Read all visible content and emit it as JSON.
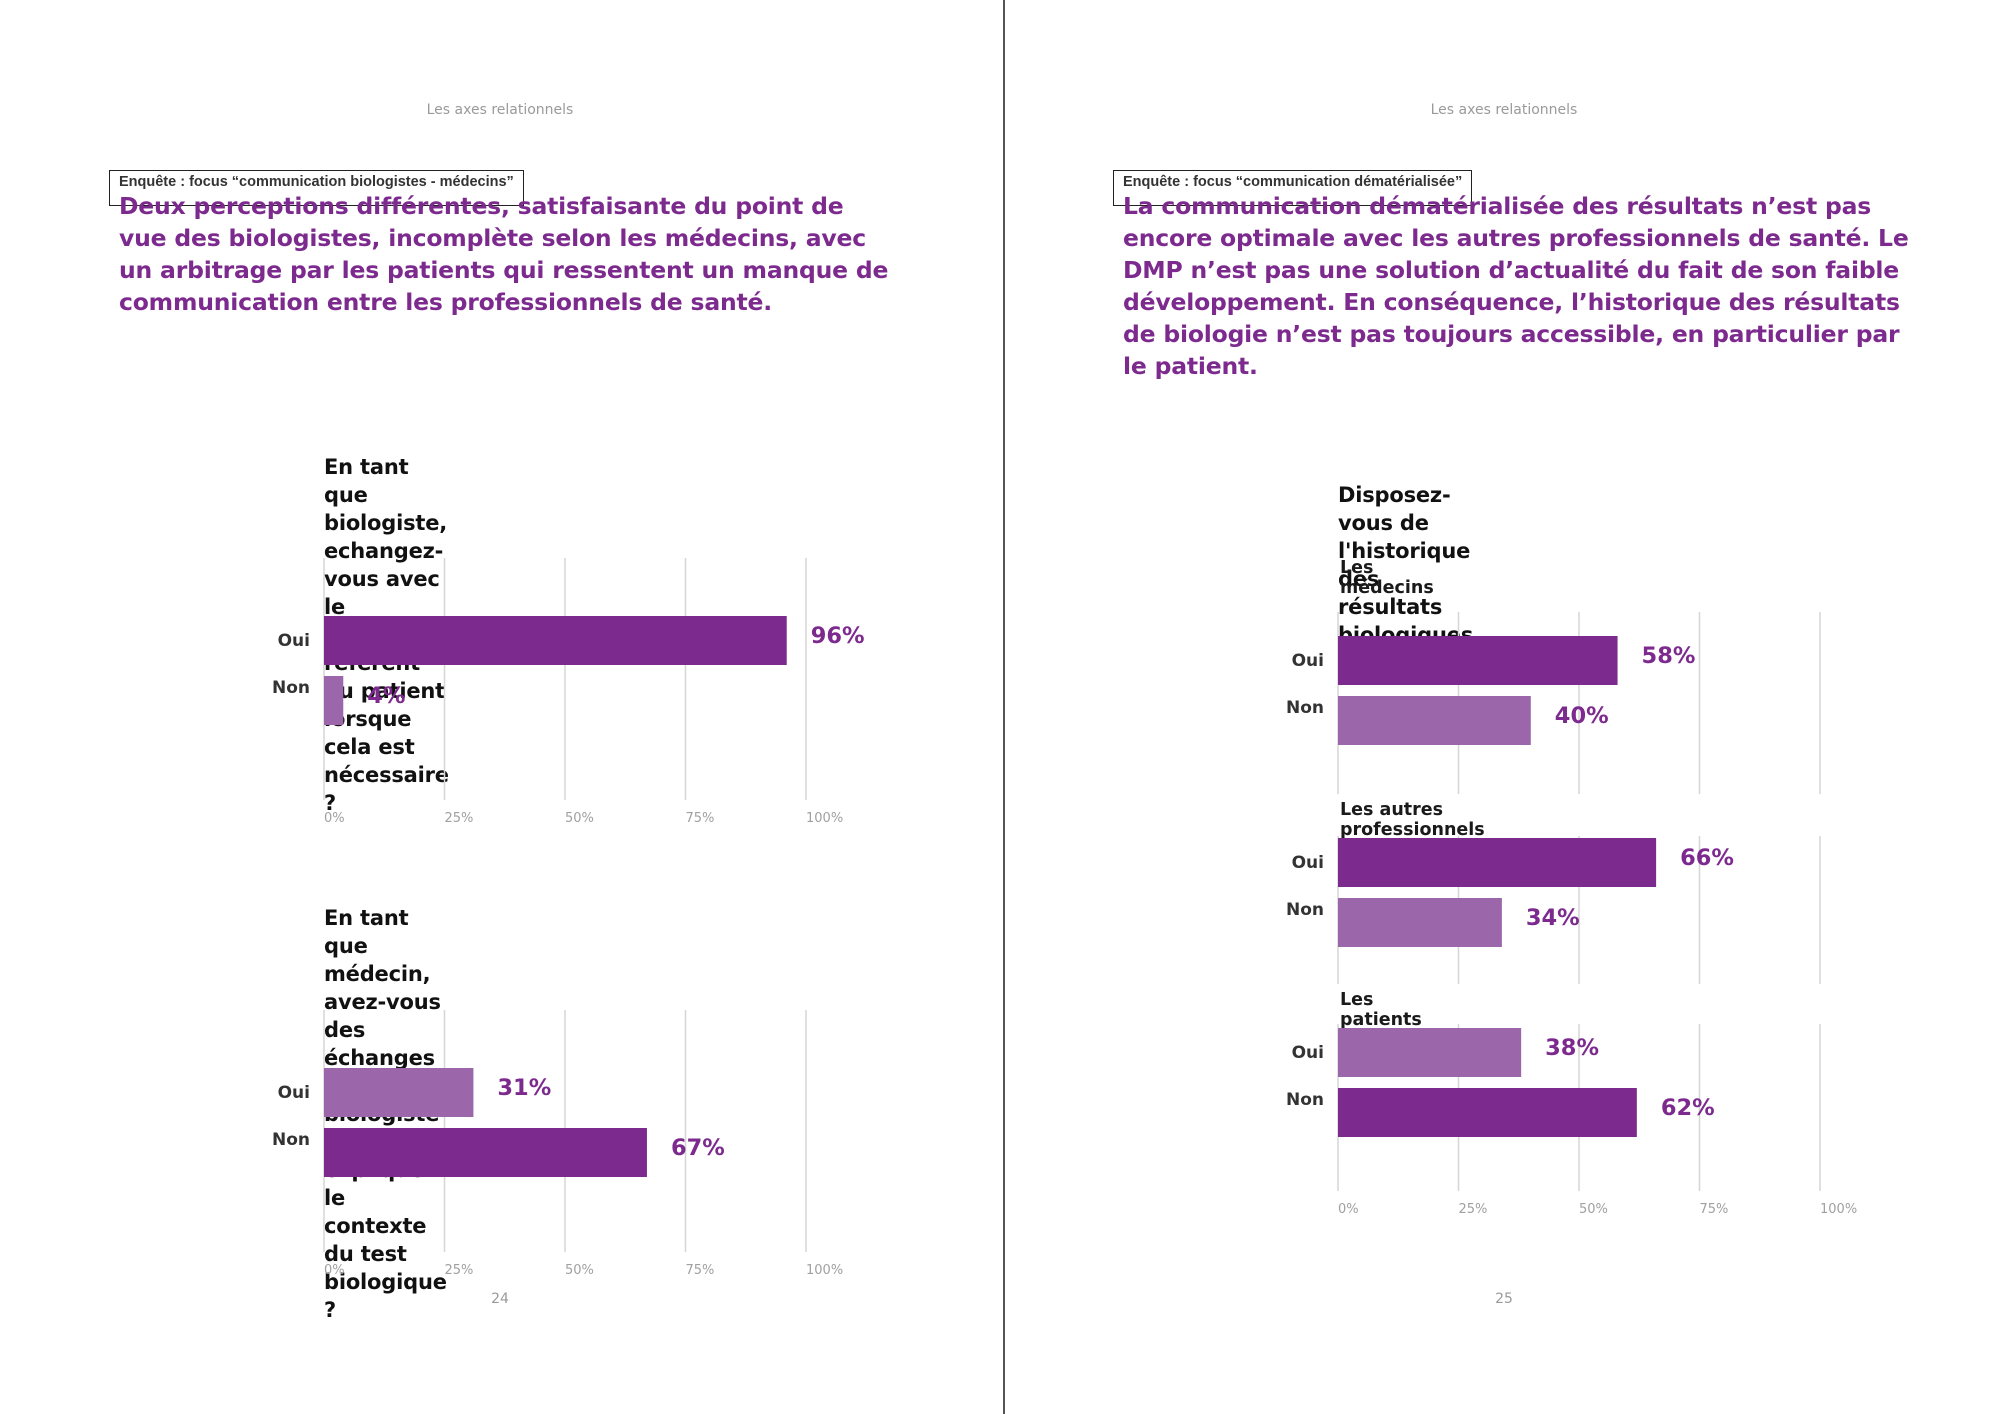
{
  "colors": {
    "accent": "#7d2a8e",
    "bar_dark": "#7d2a8e",
    "bar_light": "#9c67aa",
    "grid": "#d6d6d6",
    "tick": "#a0a0a0"
  },
  "left_page": {
    "running_header": "Les axes relationnels",
    "focus_tag": "Enquête : focus “communication biologistes - médecins”",
    "headline": "Deux perceptions différentes, satisfaisante du point de\nvue des biologistes, incomplète selon les médecins, avec\nun arbitrage par les patients qui ressentent un manque de\ncommunication entre les professionnels de santé.",
    "page_number": "24"
  },
  "right_page": {
    "running_header": "Les axes relationnels",
    "focus_tag": "Enquête : focus “communication dématérialisée”",
    "headline": "La communication dématérialisée des résultats n’est pas\nencore optimale avec les autres professionnels de santé. Le\nDMP n’est pas une solution d’actualité du fait de son faible\ndéveloppement. En conséquence, l’historique des résultats\nde biologie n’est pas toujours accessible, en particulier par\nle patient.",
    "page_number": "25"
  },
  "chart_data": [
    {
      "type": "bar",
      "orientation": "horizontal",
      "title": "En tant que biologiste, echangez-vous avec le\nmédecin référent du patient lorsque cela est\nnécessaire ?",
      "xlim": [
        0,
        100
      ],
      "ticks": [
        0,
        25,
        50,
        75,
        100
      ],
      "tick_labels": [
        "0%",
        "25%",
        "50%",
        "75%",
        "100%"
      ],
      "groups": [
        {
          "name": "",
          "categories": [
            "Oui",
            "Non"
          ],
          "values": [
            96,
            4
          ],
          "labels": [
            "96%",
            "4%"
          ],
          "tones": [
            "dark",
            "light"
          ]
        }
      ]
    },
    {
      "type": "bar",
      "orientation": "horizontal",
      "title": "En tant que médecin, avez-vous des échanges\navec le biologiste pour expliquer le contexte\ndu test biologique ?",
      "xlim": [
        0,
        100
      ],
      "ticks": [
        0,
        25,
        50,
        75,
        100
      ],
      "tick_labels": [
        "0%",
        "25%",
        "50%",
        "75%",
        "100%"
      ],
      "groups": [
        {
          "name": "",
          "categories": [
            "Oui",
            "Non"
          ],
          "values": [
            31,
            67
          ],
          "labels": [
            "31%",
            "67%"
          ],
          "tones": [
            "light",
            "dark"
          ]
        }
      ]
    },
    {
      "type": "bar",
      "orientation": "horizontal",
      "title": "Disposez-vous de l'historique des résultats\nbiologiques ?",
      "xlim": [
        0,
        100
      ],
      "ticks": [
        0,
        25,
        50,
        75,
        100
      ],
      "tick_labels": [
        "0%",
        "25%",
        "50%",
        "75%",
        "100%"
      ],
      "groups": [
        {
          "name": "Les médecins",
          "categories": [
            "Oui",
            "Non"
          ],
          "values": [
            58,
            40
          ],
          "labels": [
            "58%",
            "40%"
          ],
          "tones": [
            "dark",
            "light"
          ]
        },
        {
          "name": "Les autres professionnels de santé",
          "categories": [
            "Oui",
            "Non"
          ],
          "values": [
            66,
            34
          ],
          "labels": [
            "66%",
            "34%"
          ],
          "tones": [
            "dark",
            "light"
          ]
        },
        {
          "name": "Les patients",
          "categories": [
            "Oui",
            "Non"
          ],
          "values": [
            38,
            62
          ],
          "labels": [
            "38%",
            "62%"
          ],
          "tones": [
            "light",
            "dark"
          ]
        }
      ]
    }
  ]
}
